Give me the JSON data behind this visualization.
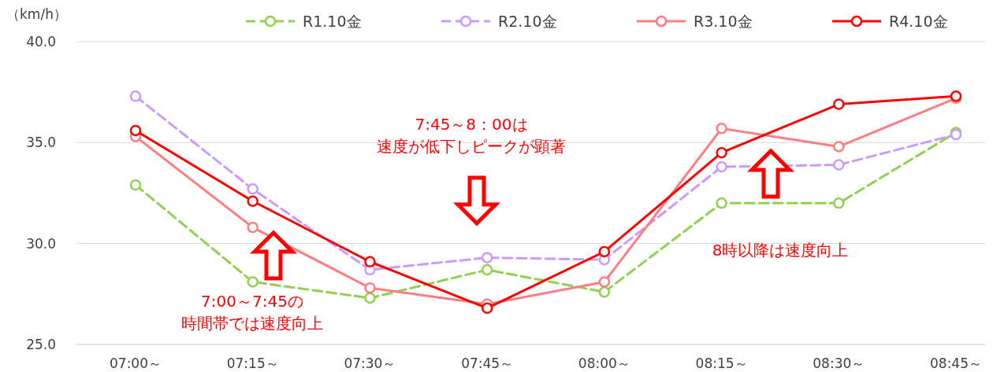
{
  "chart_data": {
    "type": "line",
    "ylabel": "（km/h）",
    "categories": [
      "07:00～",
      "07:15～",
      "07:30～",
      "07:45～",
      "08:00～",
      "08:15～",
      "08:30～",
      "08:45～"
    ],
    "ylim": [
      25,
      40
    ],
    "yticks": [
      {
        "value": 25,
        "label": "25.0"
      },
      {
        "value": 30,
        "label": "30.0"
      },
      {
        "value": 35,
        "label": "35.0"
      },
      {
        "value": 40,
        "label": "40.0"
      }
    ],
    "grid": "y",
    "legend": "top",
    "marker": "circle",
    "series": [
      {
        "name": "R1.10金",
        "color": "#92d050",
        "line_style": "dashed",
        "values": [
          32.9,
          28.1,
          27.3,
          28.7,
          27.6,
          32.0,
          32.0,
          35.5
        ]
      },
      {
        "name": "R2.10金",
        "color": "#cc99ff",
        "line_style": "dashed",
        "values": [
          37.3,
          32.7,
          28.7,
          29.3,
          29.2,
          33.8,
          33.9,
          35.4
        ]
      },
      {
        "name": "R3.10金",
        "color": "#ff7c80",
        "line_style": "solid",
        "values": [
          35.3,
          30.8,
          27.8,
          27.0,
          28.1,
          35.7,
          34.8,
          37.2
        ]
      },
      {
        "name": "R4.10金",
        "color": "#ff0000",
        "line_style": "solid",
        "values": [
          35.6,
          32.1,
          29.1,
          26.8,
          29.6,
          34.5,
          36.9,
          37.3
        ]
      }
    ],
    "annotations": [
      "7:00～7:45の",
      "時間帯では速度向上",
      "7:45～8：00は",
      "速度が低下しピークが顕著",
      "8時以降は速度向上"
    ]
  }
}
